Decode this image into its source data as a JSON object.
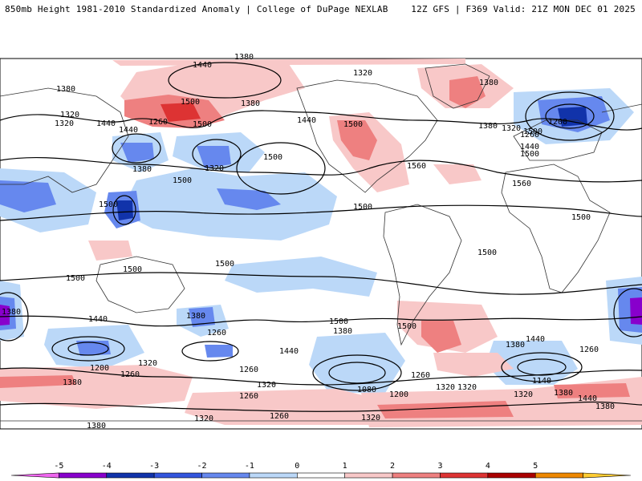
{
  "header": {
    "title": "850mb Height 1981-2010 Standardized Anomaly | College of DuPage NEXLAB",
    "run_info": "12Z GFS | F369 Valid: 21Z MON DEC 01 2025"
  },
  "colorbar": {
    "labels": [
      "-5",
      "-4",
      "-3",
      "-2",
      "-1",
      "0",
      "1",
      "2",
      "3",
      "4",
      "5"
    ],
    "colors": [
      "#ee66ee",
      "#8800cc",
      "#1133aa",
      "#3355dd",
      "#6688ee",
      "#bbd8f8",
      "#ffffff",
      "#f8c8c8",
      "#ee8080",
      "#dd3333",
      "#aa0000",
      "#ee8800",
      "#ffcc33"
    ]
  },
  "contour_labels": [
    "1380",
    "1440",
    "1320",
    "1380",
    "1380",
    "1500",
    "1320",
    "1440",
    "1500",
    "1380",
    "1320",
    "1500",
    "1440",
    "1500",
    "1440",
    "1320",
    "1380",
    "1500",
    "1200",
    "1500",
    "1560",
    "1560",
    "1260",
    "1440",
    "1500",
    "1260",
    "1500",
    "1500",
    "1500",
    "1500",
    "1500",
    "1500",
    "1500",
    "1380",
    "1440",
    "1380",
    "1320",
    "1200",
    "1260",
    "1380",
    "1260",
    "1260",
    "1440",
    "1500",
    "1380",
    "1320",
    "1320",
    "1260",
    "1080",
    "1200",
    "1260",
    "1320",
    "1500",
    "1440",
    "1380",
    "1260",
    "1140",
    "1320",
    "1380",
    "1440",
    "1380",
    "1380",
    "1320",
    "1260",
    "1320",
    "1380",
    "1320"
  ],
  "colors": {
    "neg1": "#bbd8f8",
    "neg2": "#6688ee",
    "neg3": "#3355dd",
    "neg4": "#1133aa",
    "neg5": "#8800cc",
    "pos1": "#f8c8c8",
    "pos2": "#ee8080",
    "pos3": "#dd3333"
  }
}
